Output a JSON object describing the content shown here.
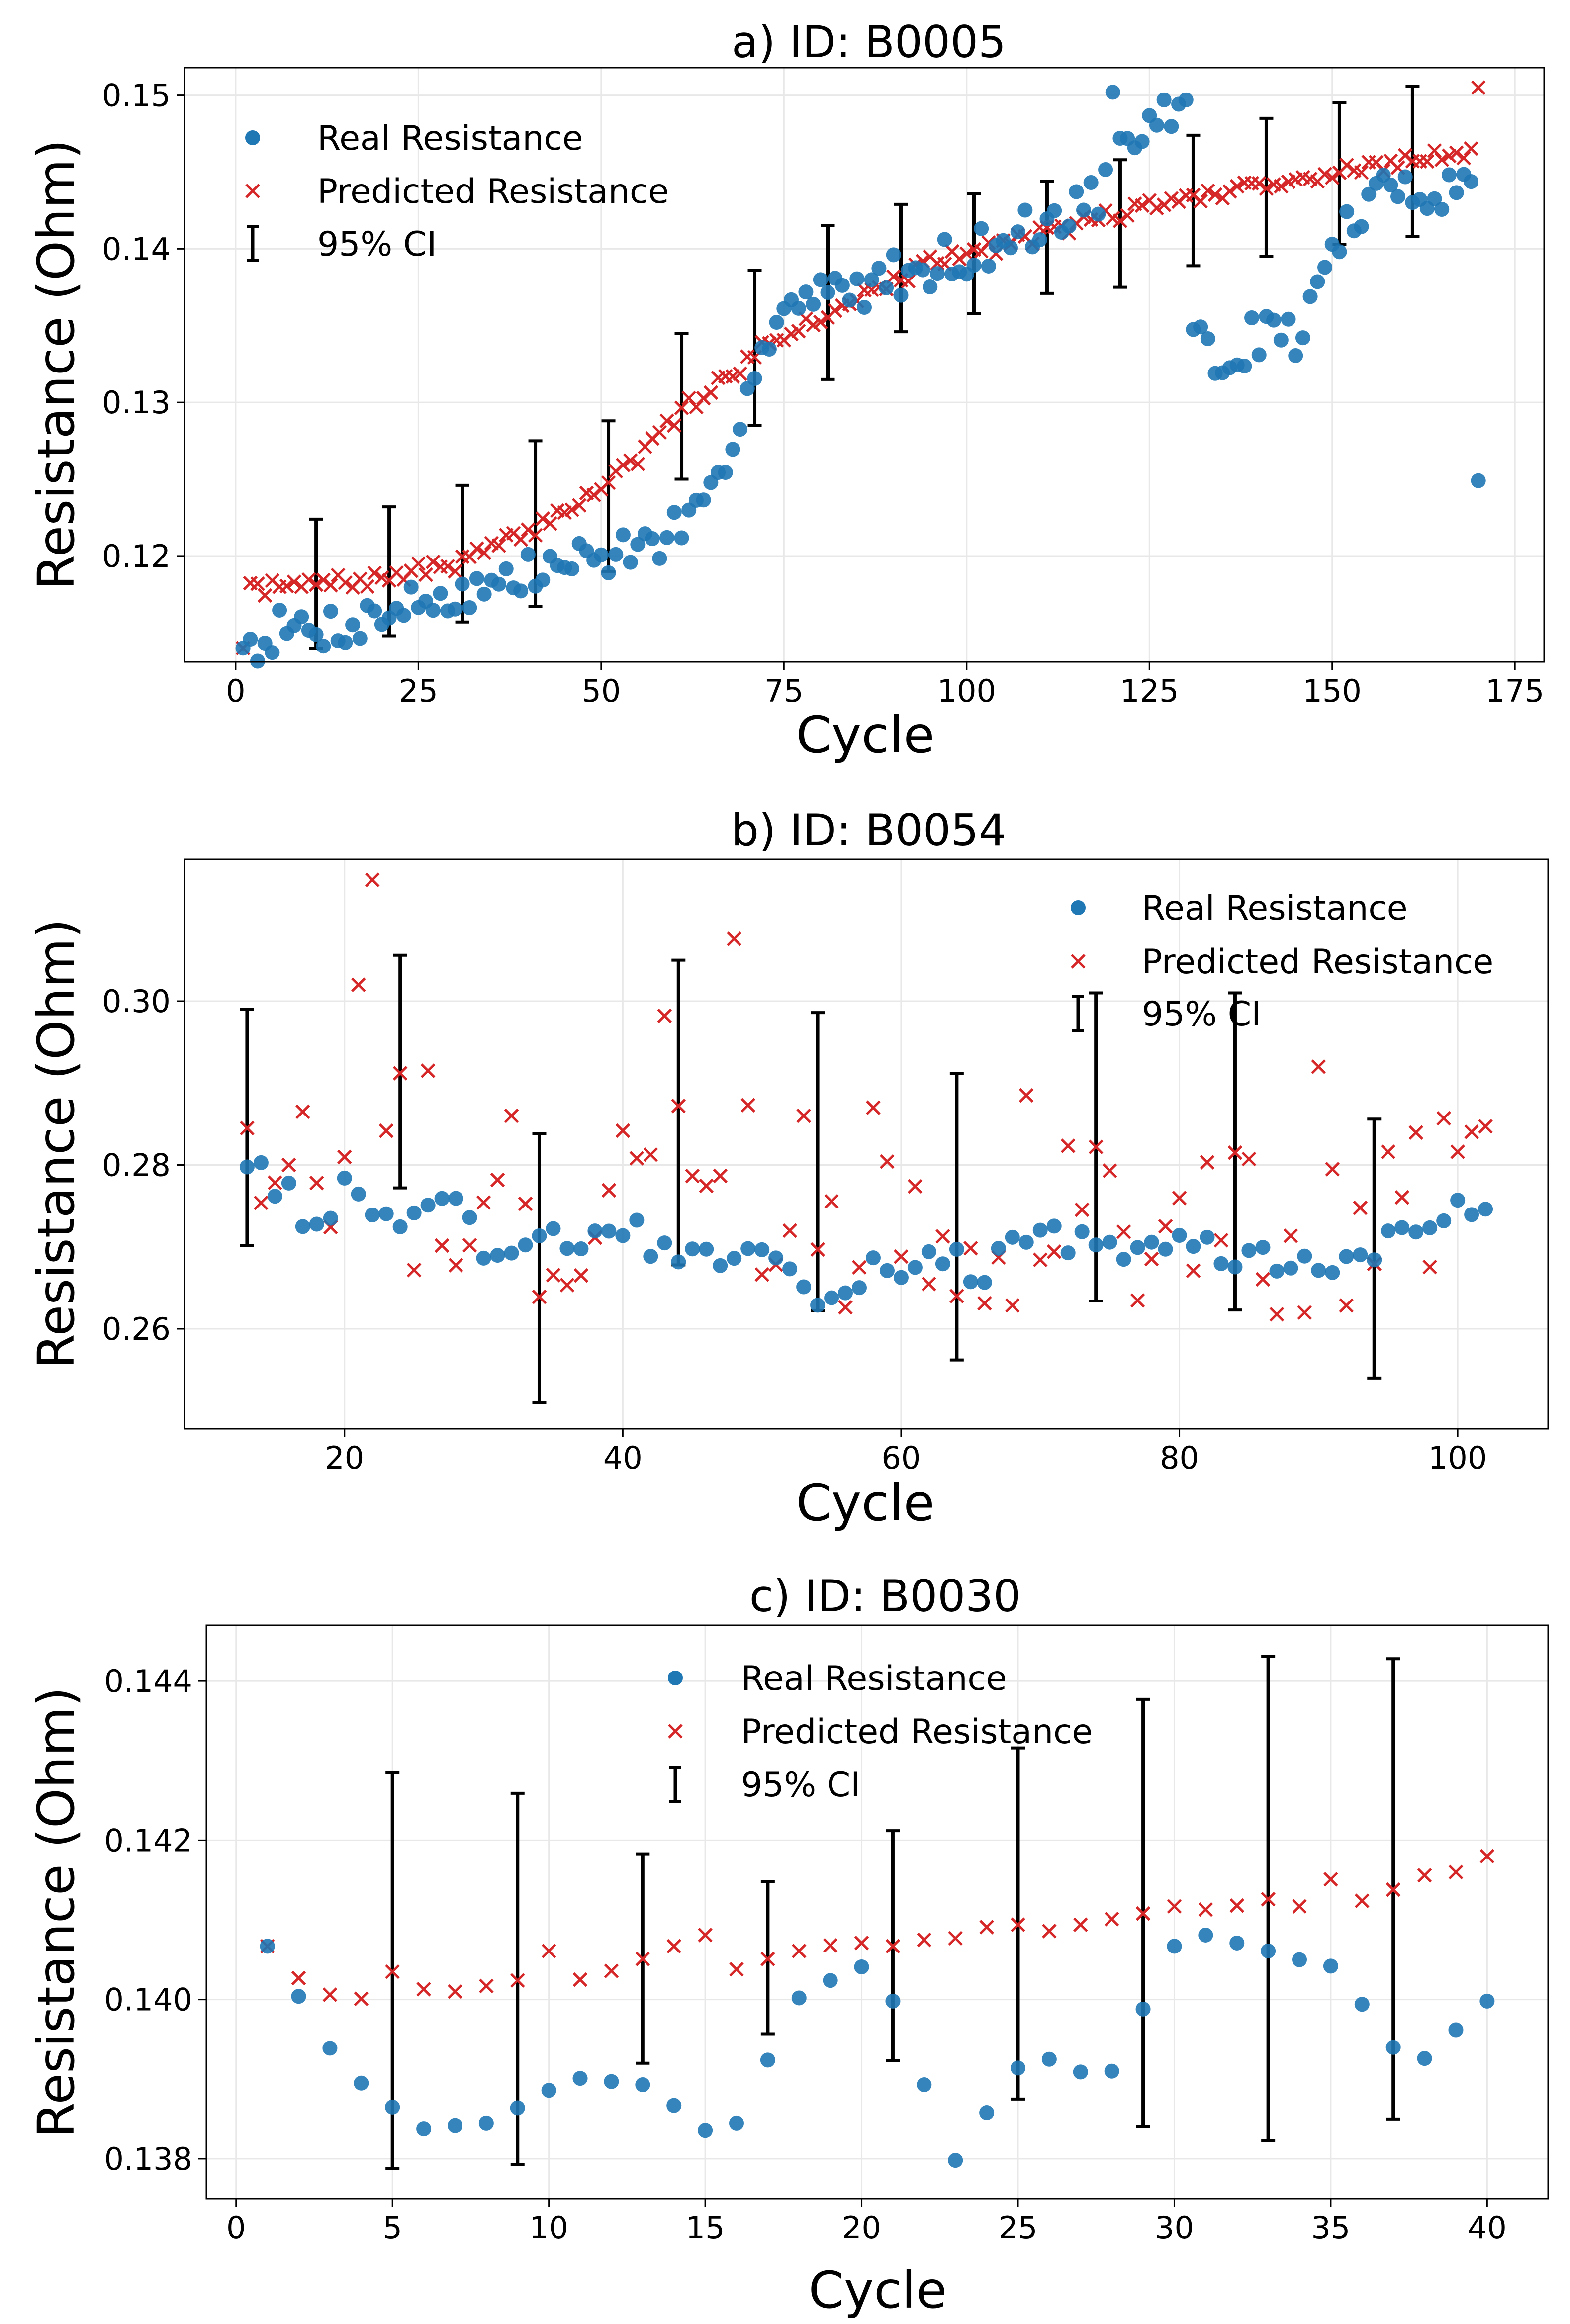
{
  "figure": {
    "ylabel": "Resistance (Ohm)"
  },
  "colors": {
    "real": "#1f77b4",
    "pred": "#d62728",
    "ci": "#000000",
    "grid": "#e8e8e8"
  },
  "chart_data": [
    {
      "id": "a",
      "type": "scatter",
      "title": "a) ID: B0005",
      "xlabel": "Cycle",
      "ylabel": "Resistance (Ohm)",
      "xlim": [
        -7,
        179
      ],
      "ylim": [
        0.1131,
        0.1518
      ],
      "xticks": [
        0,
        25,
        50,
        75,
        100,
        125,
        150,
        175
      ],
      "xtick_labels": [
        "0",
        "25",
        "50",
        "75",
        "100",
        "125",
        "150",
        "175"
      ],
      "yticks": [
        0.12,
        0.13,
        0.14,
        0.15
      ],
      "ytick_labels": [
        "0.12",
        "0.13",
        "0.14",
        "0.15"
      ],
      "legend": {
        "position": "upper-left",
        "entries": [
          "Real Resistance",
          "Predicted Resistance",
          "95% CI"
        ]
      },
      "series": [
        {
          "name": "Real Resistance",
          "marker": "circle",
          "x": [],
          "y": []
        },
        {
          "name": "Predicted Resistance",
          "marker": "x",
          "x": [],
          "y": []
        },
        {
          "name": "95% CI",
          "marker": "errorbar",
          "x": [],
          "low": [],
          "high": []
        }
      ]
    },
    {
      "id": "b",
      "type": "scatter",
      "title": "b) ID: B0054",
      "xlabel": "Cycle",
      "ylabel": "Resistance (Ohm)",
      "xlim": [
        8.5,
        106.5
      ],
      "ylim": [
        0.2478,
        0.3173
      ],
      "xticks": [
        20,
        40,
        60,
        80,
        100
      ],
      "xtick_labels": [
        "20",
        "40",
        "60",
        "80",
        "100"
      ],
      "yticks": [
        0.26,
        0.28,
        0.3
      ],
      "ytick_labels": [
        "0.26",
        "0.28",
        "0.30"
      ],
      "legend": {
        "position": "upper-right",
        "entries": [
          "Real Resistance",
          "Predicted Resistance",
          "95% CI"
        ]
      },
      "series": [
        {
          "name": "Real Resistance",
          "marker": "circle",
          "x": [],
          "y": []
        },
        {
          "name": "Predicted Resistance",
          "marker": "x",
          "x": [],
          "y": []
        },
        {
          "name": "95% CI",
          "marker": "errorbar",
          "x": [],
          "low": [],
          "high": []
        }
      ]
    },
    {
      "id": "c",
      "type": "scatter",
      "title": "c) ID: B0030",
      "xlabel": "Cycle",
      "ylabel": "Resistance (Ohm)",
      "xlim": [
        -0.95,
        41.95
      ],
      "ylim": [
        0.1375,
        0.1447
      ],
      "xticks": [
        0,
        5,
        10,
        15,
        20,
        25,
        30,
        35,
        40
      ],
      "xtick_labels": [
        "0",
        "5",
        "10",
        "15",
        "20",
        "25",
        "30",
        "35",
        "40"
      ],
      "yticks": [
        0.138,
        0.14,
        0.142,
        0.144
      ],
      "ytick_labels": [
        "0.138",
        "0.140",
        "0.142",
        "0.144"
      ],
      "legend": {
        "position": "upper-center",
        "entries": [
          "Real Resistance",
          "Predicted Resistance",
          "95% CI"
        ]
      },
      "series": [
        {
          "name": "Real Resistance",
          "marker": "circle",
          "x": [
            1,
            2,
            3,
            4,
            5,
            6,
            7,
            8,
            9,
            10,
            11,
            12,
            13,
            14,
            15,
            16,
            17,
            18,
            19,
            20,
            21,
            22,
            23,
            24,
            25,
            26,
            27,
            28,
            29,
            30,
            31,
            32,
            33,
            34,
            35,
            36,
            37,
            38,
            39,
            40
          ],
          "y": [
            0.14067,
            0.14004,
            0.13939,
            0.13895,
            0.13865,
            0.13838,
            0.13842,
            0.13845,
            0.13864,
            0.13886,
            0.13901,
            0.13897,
            0.13893,
            0.13867,
            0.13836,
            0.13845,
            0.13924,
            0.14002,
            0.14024,
            0.14041,
            0.13998,
            0.13893,
            0.13798,
            0.13858,
            0.13914,
            0.13925,
            0.13909,
            0.1391,
            0.13988,
            0.14067,
            0.14081,
            0.14071,
            0.14061,
            0.1405,
            0.14042,
            0.13994,
            0.1394,
            0.13926,
            0.13962,
            0.13998
          ]
        },
        {
          "name": "Predicted Resistance",
          "marker": "x",
          "x": [
            1,
            2,
            3,
            4,
            5,
            6,
            7,
            8,
            9,
            10,
            11,
            12,
            13,
            14,
            15,
            16,
            17,
            18,
            19,
            20,
            21,
            22,
            23,
            24,
            25,
            26,
            27,
            28,
            29,
            30,
            31,
            32,
            33,
            34,
            35,
            36,
            37,
            38,
            39,
            40
          ],
          "y": [
            0.14067,
            0.14027,
            0.14006,
            0.14001,
            0.14035,
            0.14013,
            0.1401,
            0.14017,
            0.14024,
            0.14061,
            0.14025,
            0.14036,
            0.14051,
            0.14067,
            0.14081,
            0.14038,
            0.14051,
            0.14061,
            0.14068,
            0.14071,
            0.14067,
            0.14075,
            0.14077,
            0.14091,
            0.14094,
            0.14086,
            0.14094,
            0.14101,
            0.14108,
            0.14117,
            0.14113,
            0.14118,
            0.14126,
            0.14117,
            0.14151,
            0.14124,
            0.14138,
            0.14156,
            0.1416,
            0.1418
          ]
        },
        {
          "name": "95% CI",
          "marker": "errorbar",
          "x": [
            5,
            9,
            13,
            17,
            21,
            25,
            29,
            33,
            37
          ],
          "low": [
            0.13788,
            0.13793,
            0.1392,
            0.13957,
            0.13923,
            0.13875,
            0.13841,
            0.13823,
            0.1385
          ],
          "high": [
            0.14285,
            0.14259,
            0.14183,
            0.14148,
            0.14212,
            0.14316,
            0.14377,
            0.14431,
            0.14428
          ]
        }
      ]
    }
  ]
}
